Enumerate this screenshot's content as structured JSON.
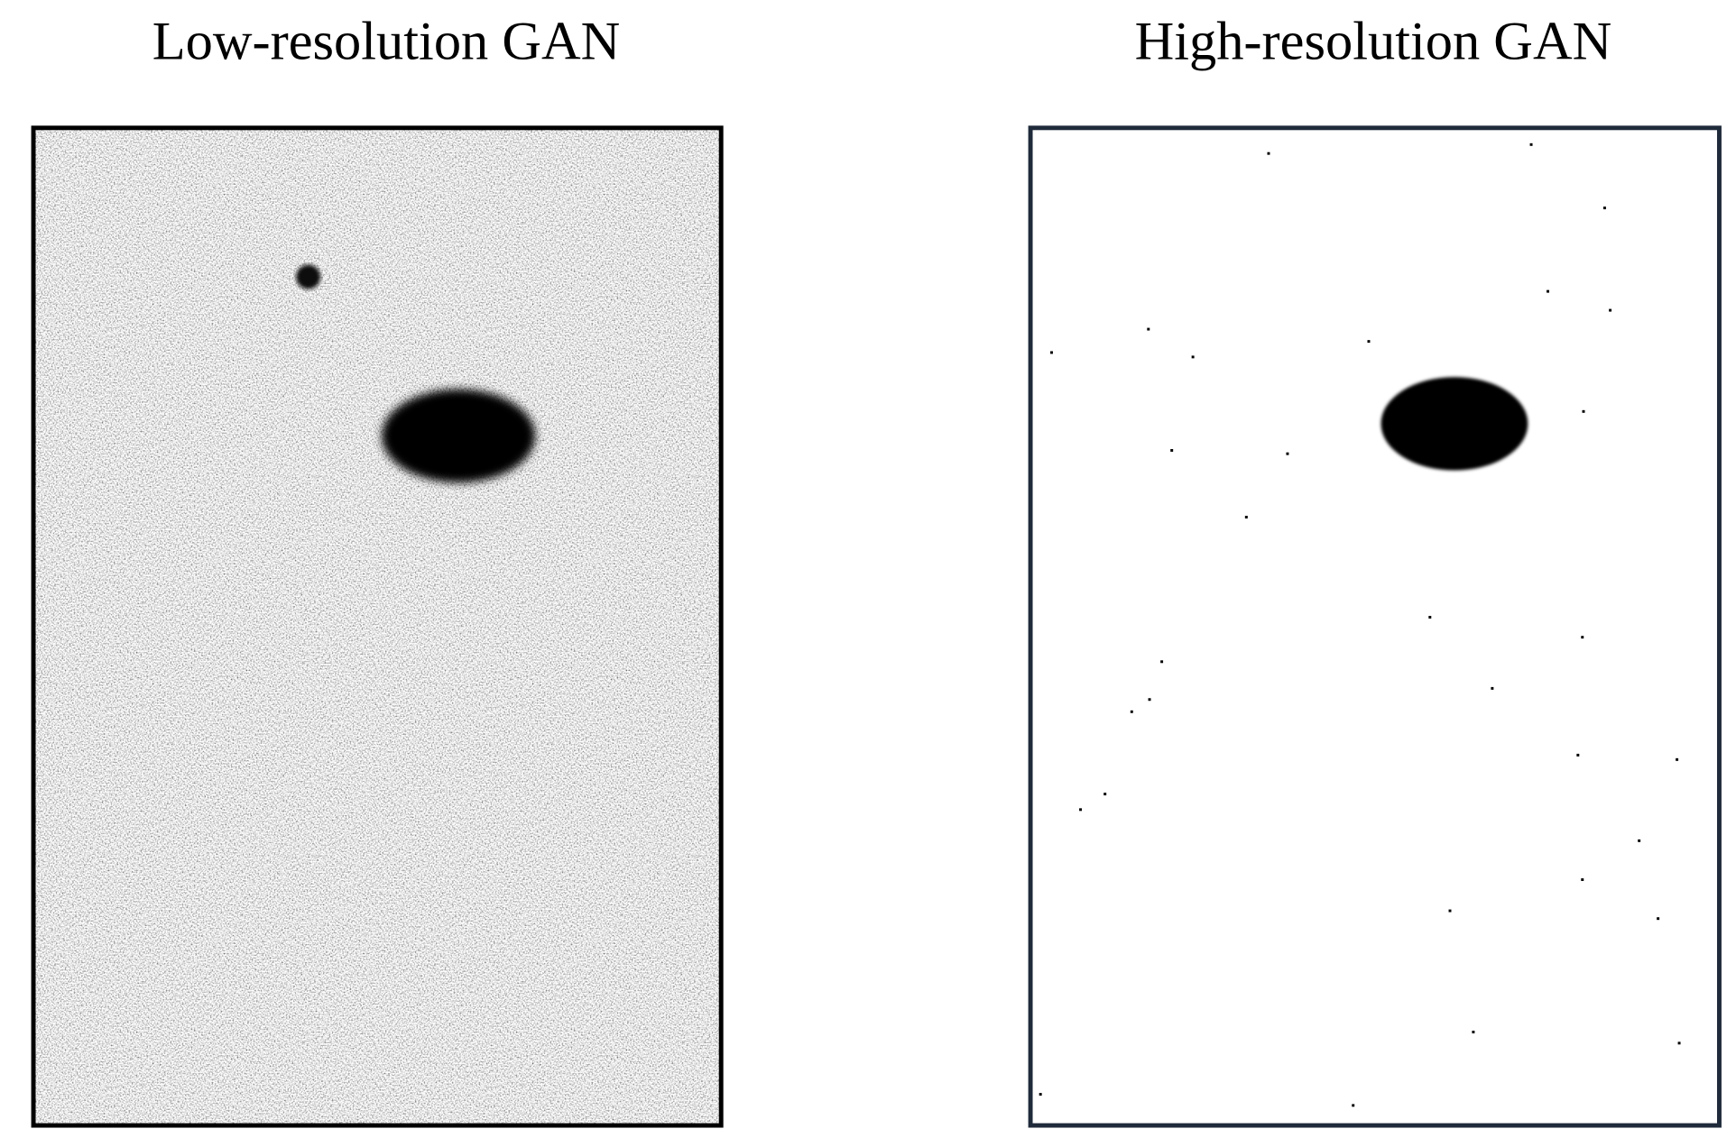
{
  "panels": [
    {
      "title": "Low-resolution GAN"
    },
    {
      "title": "High-resolution GAN"
    }
  ]
}
